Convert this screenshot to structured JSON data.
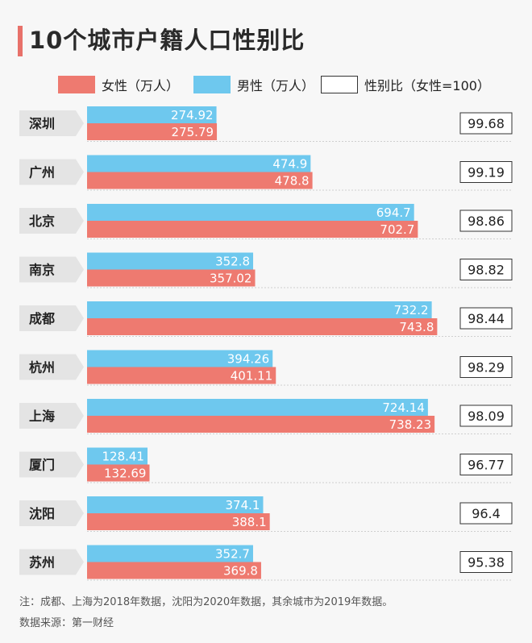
{
  "title": "10个城市户籍人口性别比",
  "legend": {
    "female": "女性（万人）",
    "male": "男性（万人）",
    "ratio": "性别比（女性=100）"
  },
  "colors": {
    "female": "#ee7a70",
    "male": "#6ec8ee",
    "accent": "#e8716a",
    "label_bg": "#e4e4e4"
  },
  "chart_data": {
    "type": "bar",
    "orientation": "horizontal",
    "title": "10个城市户籍人口性别比",
    "categories": [
      "深圳",
      "广州",
      "北京",
      "南京",
      "成都",
      "杭州",
      "上海",
      "厦门",
      "沈阳",
      "苏州"
    ],
    "series": [
      {
        "name": "男性（万人）",
        "values": [
          274.92,
          474.9,
          694.7,
          352.8,
          732.2,
          394.26,
          724.14,
          128.41,
          374.1,
          352.7
        ]
      },
      {
        "name": "女性（万人）",
        "values": [
          275.79,
          478.8,
          702.7,
          357.02,
          743.8,
          401.11,
          738.23,
          132.69,
          388.1,
          369.8
        ]
      }
    ],
    "ratio": {
      "name": "性别比（女性=100）",
      "values": [
        "99.68",
        "99.19",
        "98.86",
        "98.82",
        "98.44",
        "98.29",
        "98.09",
        "96.77",
        "96.4",
        "95.38"
      ]
    },
    "xlim": [
      0,
      750
    ],
    "grid": false,
    "legend_position": "top"
  },
  "note": "注：成都、上海为2018年数据，沈阳为2020年数据，其余城市为2019年数据。",
  "source": "数据来源：第一财经"
}
